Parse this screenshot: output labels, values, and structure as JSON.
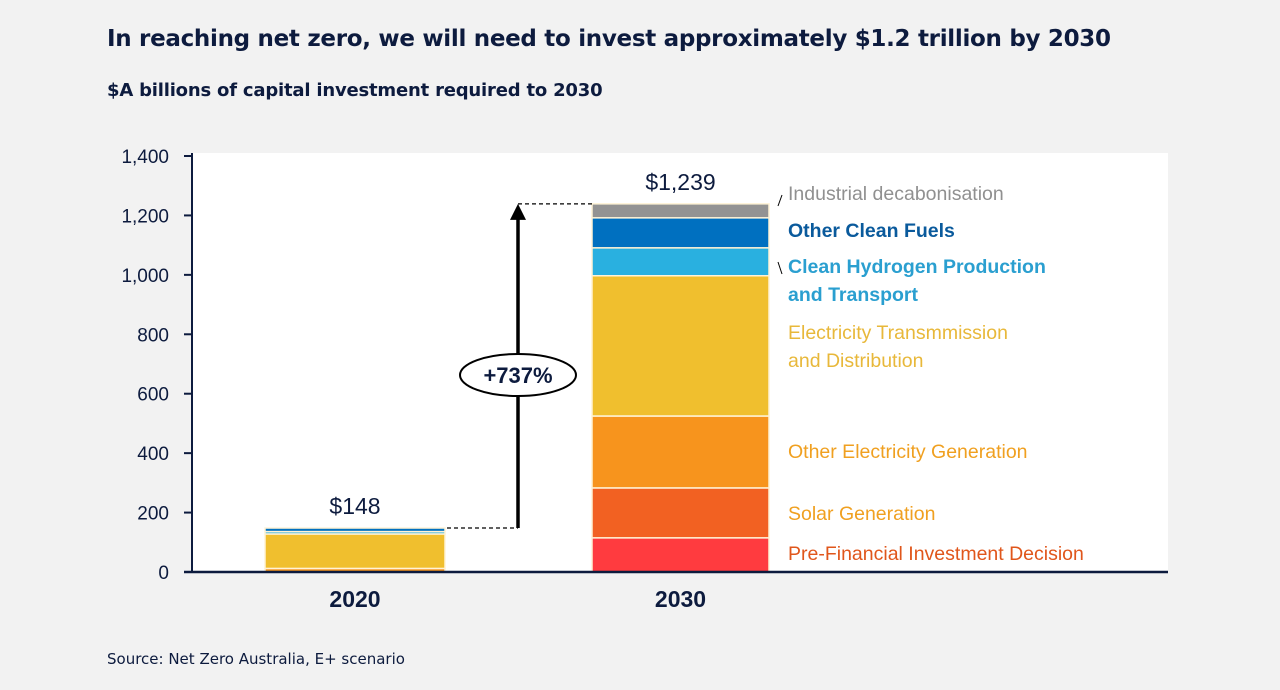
{
  "chart_data": {
    "type": "bar",
    "stacked": true,
    "title": "In reaching net zero, we will need to invest approximately $1.2 trillion by 2030",
    "subtitle": "$A billions of capital investment required to 2030",
    "source": "Source: Net Zero Australia, E+ scenario",
    "categories": [
      "2020",
      "2030"
    ],
    "ylim": [
      0,
      1400
    ],
    "yticks": [
      0,
      200,
      400,
      600,
      800,
      1000,
      1200,
      1400
    ],
    "ytick_labels": [
      "0",
      "200",
      "400",
      "600",
      "800",
      "1,000",
      "1,200",
      "1,400"
    ],
    "grid": false,
    "series": [
      {
        "name": "Pre-Financial Investment Decision",
        "color": "#ff3b3f",
        "label_color": "#e0561b",
        "values": [
          0,
          115
        ]
      },
      {
        "name": "Solar Generation",
        "color": "#f26122",
        "label_color": "#f0a020",
        "values": [
          0,
          168
        ]
      },
      {
        "name": "Other Electricity Generation",
        "color": "#f7941d",
        "label_color": "#f0a020",
        "values": [
          12,
          242
        ]
      },
      {
        "name": "Electricity Transmmission and Distribution",
        "label_lines": [
          "Electricity Transmmission",
          "and Distribution"
        ],
        "color": "#f0bf2e",
        "label_color": "#e8b83a",
        "values": [
          116,
          472
        ]
      },
      {
        "name": "Clean Hydrogen Production and Transport",
        "label_lines": [
          "Clean Hydrogen Production",
          "and Transport"
        ],
        "color": "#29b0e0",
        "label_color": "#2a9fd0",
        "values": [
          8,
          94
        ]
      },
      {
        "name": "Other Clean Fuels",
        "color": "#0070c0",
        "label_color": "#0a5a9c",
        "values": [
          12,
          101
        ]
      },
      {
        "name": "Industrial decabonisation",
        "color": "#939393",
        "label_color": "#909090",
        "values": [
          0,
          47
        ]
      }
    ],
    "totals_labels": [
      "$148",
      "$1,239"
    ],
    "totals": [
      148,
      1239
    ],
    "annotation": "+737%"
  }
}
